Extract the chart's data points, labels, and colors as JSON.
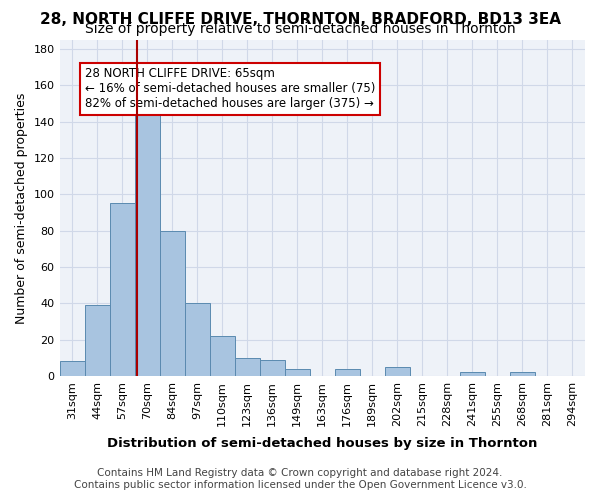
{
  "title": "28, NORTH CLIFFE DRIVE, THORNTON, BRADFORD, BD13 3EA",
  "subtitle": "Size of property relative to semi-detached houses in Thornton",
  "xlabel": "Distribution of semi-detached houses by size in Thornton",
  "ylabel": "Number of semi-detached properties",
  "footnote1": "Contains HM Land Registry data © Crown copyright and database right 2024.",
  "footnote2": "Contains public sector information licensed under the Open Government Licence v3.0.",
  "bin_labels": [
    "31sqm",
    "44sqm",
    "57sqm",
    "70sqm",
    "84sqm",
    "97sqm",
    "110sqm",
    "123sqm",
    "136sqm",
    "149sqm",
    "163sqm",
    "176sqm",
    "189sqm",
    "202sqm",
    "215sqm",
    "228sqm",
    "241sqm",
    "255sqm",
    "268sqm",
    "281sqm",
    "294sqm"
  ],
  "bar_values": [
    8,
    39,
    95,
    145,
    80,
    40,
    22,
    10,
    9,
    4,
    0,
    4,
    0,
    5,
    0,
    0,
    2,
    0,
    2,
    0,
    0
  ],
  "bar_color": "#a8c4e0",
  "bar_edge_color": "#5a8ab0",
  "ylim": [
    0,
    185
  ],
  "yticks": [
    0,
    20,
    40,
    60,
    80,
    100,
    120,
    140,
    160,
    180
  ],
  "property_size": 65,
  "property_label": "28 NORTH CLIFFE DRIVE: 65sqm",
  "pct_smaller": 16,
  "count_smaller": 75,
  "pct_larger": 82,
  "count_larger": 375,
  "red_line_color": "#aa0000",
  "annotation_box_color": "#cc0000",
  "grid_color": "#d0d8e8",
  "background_color": "#eef2f8",
  "title_fontsize": 11,
  "subtitle_fontsize": 10,
  "axis_label_fontsize": 9,
  "tick_fontsize": 8,
  "annotation_fontsize": 8.5,
  "footnote_fontsize": 7.5
}
